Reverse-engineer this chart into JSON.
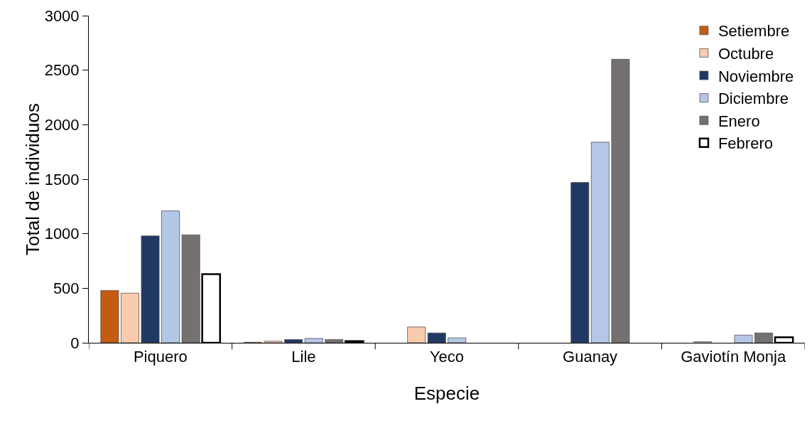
{
  "chart_data": {
    "type": "bar",
    "xlabel": "Especie",
    "ylabel": "Total de individuos",
    "categories": [
      "Piquero",
      "Lile",
      "Yeco",
      "Guanay",
      "Gaviotín Monja"
    ],
    "series": [
      {
        "name": "Setiembre",
        "color": "#c55a11",
        "values": [
          480,
          5,
          0,
          0,
          0
        ]
      },
      {
        "name": "Octubre",
        "color": "#f8cbad",
        "values": [
          455,
          15,
          145,
          0,
          10
        ]
      },
      {
        "name": "Noviembre",
        "color": "#1f3864",
        "values": [
          980,
          30,
          90,
          1470,
          0
        ]
      },
      {
        "name": "Diciembre",
        "color": "#b4c7e7",
        "values": [
          1210,
          40,
          45,
          1840,
          70
        ]
      },
      {
        "name": "Enero",
        "color": "#767171",
        "values": [
          990,
          30,
          0,
          2600,
          90
        ]
      },
      {
        "name": "Febrero",
        "color": "#ffffff",
        "values": [
          630,
          15,
          0,
          0,
          50
        ]
      }
    ],
    "ylim": [
      0,
      3000
    ],
    "yticks": [
      0,
      500,
      1000,
      1500,
      2000,
      2500,
      3000
    ],
    "grid": false,
    "legend": "top right"
  }
}
